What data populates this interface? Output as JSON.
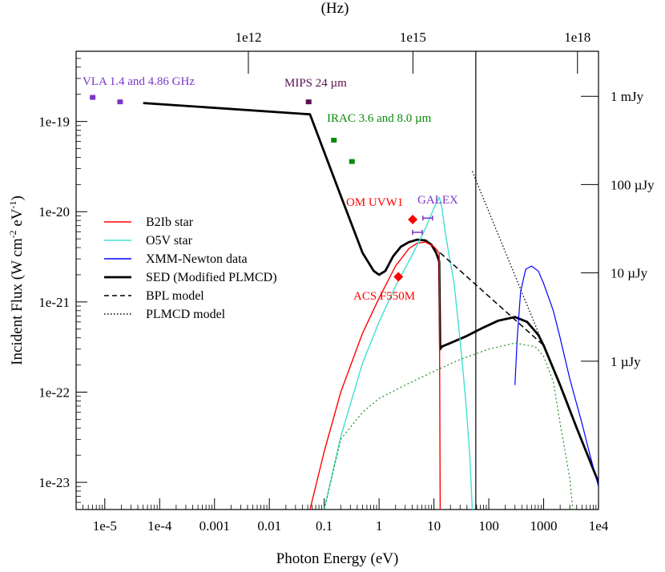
{
  "chart_data": {
    "type": "line",
    "xlabel": "Photon Energy (eV)",
    "ylabel_parts": [
      "Incident Flux  (W cm",
      "-2",
      " eV",
      "-1",
      ")"
    ],
    "top_axis_label": "(Hz)",
    "x_scale": "log",
    "y_scale": "log",
    "xlim": [
      3e-06,
      10000
    ],
    "ylim": [
      5e-24,
      6e-19
    ],
    "x_ticks": [
      {
        "value": 1e-05,
        "label": "1e-5"
      },
      {
        "value": 0.0001,
        "label": "1e-4"
      },
      {
        "value": 0.001,
        "label": "0.001"
      },
      {
        "value": 0.01,
        "label": "0.01"
      },
      {
        "value": 0.1,
        "label": "0.1"
      },
      {
        "value": 1,
        "label": "1"
      },
      {
        "value": 10,
        "label": "10"
      },
      {
        "value": 100,
        "label": "100"
      },
      {
        "value": 1000,
        "label": "1000"
      },
      {
        "value": 10000,
        "label": "1e4"
      }
    ],
    "y_ticks": [
      {
        "value": 1e-19,
        "label": "1e-19"
      },
      {
        "value": 1e-20,
        "label": "1e-20"
      },
      {
        "value": 1e-21,
        "label": "1e-21"
      },
      {
        "value": 1e-22,
        "label": "1e-22"
      },
      {
        "value": 1e-23,
        "label": "1e-23"
      }
    ],
    "top_ticks": [
      {
        "value": 0.00414,
        "label": "1e12"
      },
      {
        "value": 4.14,
        "label": "1e15"
      },
      {
        "value": 4140,
        "label": "1e18"
      }
    ],
    "right_ticks": [
      {
        "value": 1.9e-19,
        "label": "1 mJy"
      },
      {
        "value": 2e-20,
        "label": "100 µJy"
      },
      {
        "value": 2.1e-21,
        "label": "10 µJy"
      },
      {
        "value": 2.2e-22,
        "label": "1 µJy"
      }
    ],
    "vertical_line_x": 58,
    "legend": [
      {
        "label": "B2Ib star",
        "color": "#ff0000",
        "dash": "solid"
      },
      {
        "label": "O5V star",
        "color": "#40e0d0",
        "dash": "solid"
      },
      {
        "label": "XMM-Newton data",
        "color": "#0000ff",
        "dash": "solid"
      },
      {
        "label": "SED (Modified PLMCD)",
        "color": "#000000",
        "dash": "thick"
      },
      {
        "label": "BPL model",
        "color": "#000000",
        "dash": "dashed"
      },
      {
        "label": "PLMCD model",
        "color": "#000000",
        "dash": "dotted"
      }
    ],
    "series": [
      {
        "name": "SED (Modified PLMCD)",
        "color": "#000000",
        "width": 2.8,
        "dash": "",
        "points": [
          [
            5e-05,
            1.6e-19
          ],
          [
            0.055,
            1.2e-19
          ],
          [
            0.2,
            1.5e-20
          ],
          [
            0.5,
            3.5e-21
          ],
          [
            0.8,
            2.2e-21
          ],
          [
            1.0,
            2e-21
          ],
          [
            1.3,
            2.2e-21
          ],
          [
            1.8,
            3.2e-21
          ],
          [
            2.5,
            4.1e-21
          ],
          [
            3.5,
            4.6e-21
          ],
          [
            5,
            4.9e-21
          ],
          [
            7,
            4.8e-21
          ],
          [
            9,
            4.3e-21
          ],
          [
            11,
            3.5e-21
          ],
          [
            12.5,
            2.8e-21
          ],
          [
            13,
            3e-22
          ],
          [
            14,
            3.2e-22
          ],
          [
            20,
            3.5e-22
          ],
          [
            40,
            4.2e-22
          ],
          [
            80,
            5.2e-22
          ],
          [
            150,
            6.2e-22
          ],
          [
            300,
            6.8e-22
          ],
          [
            500,
            6e-22
          ],
          [
            800,
            4.3e-22
          ],
          [
            1000,
            3.3e-22
          ],
          [
            2000,
            1.2e-22
          ],
          [
            4000,
            4e-23
          ],
          [
            10000,
            1e-23
          ]
        ]
      },
      {
        "name": "B2Ib star",
        "color": "#ff0000",
        "width": 1.4,
        "dash": "",
        "points": [
          [
            0.055,
            5e-24
          ],
          [
            0.1,
            2.2e-23
          ],
          [
            0.2,
            1e-22
          ],
          [
            0.5,
            4.5e-22
          ],
          [
            1,
            1.1e-21
          ],
          [
            2,
            2.5e-21
          ],
          [
            3.5,
            3.9e-21
          ],
          [
            5,
            4.5e-21
          ],
          [
            7,
            4.6e-21
          ],
          [
            10,
            4.1e-21
          ],
          [
            12.5,
            3.5e-21
          ],
          [
            13,
            5e-24
          ]
        ]
      },
      {
        "name": "O5V star",
        "color": "#40e0d0",
        "width": 1.4,
        "dash": "",
        "points": [
          [
            0.1,
            5e-24
          ],
          [
            0.2,
            3.2e-23
          ],
          [
            0.5,
            2.1e-22
          ],
          [
            1,
            6e-22
          ],
          [
            2,
            1.5e-21
          ],
          [
            4,
            3.3e-21
          ],
          [
            7,
            6.5e-21
          ],
          [
            10,
            1.1e-20
          ],
          [
            12.5,
            1.45e-20
          ],
          [
            14,
            1.1e-20
          ],
          [
            16,
            6e-21
          ],
          [
            19,
            3.2e-21
          ],
          [
            23,
            1.7e-21
          ],
          [
            27,
            7e-22
          ],
          [
            32,
            2.5e-22
          ],
          [
            38,
            8e-23
          ],
          [
            45,
            2e-23
          ],
          [
            50,
            5e-24
          ]
        ]
      },
      {
        "name": "XMM-Newton data",
        "color": "#0000ff",
        "width": 1.2,
        "dash": "",
        "points": [
          [
            300,
            1.2e-22
          ],
          [
            330,
            4e-22
          ],
          [
            380,
            1.3e-21
          ],
          [
            470,
            2.3e-21
          ],
          [
            600,
            2.5e-21
          ],
          [
            800,
            2.2e-21
          ],
          [
            1000,
            1.6e-21
          ],
          [
            1500,
            8e-22
          ],
          [
            2000,
            4e-22
          ],
          [
            3000,
            1.4e-22
          ],
          [
            5000,
            4.5e-23
          ],
          [
            7000,
            2e-23
          ],
          [
            10000,
            9e-24
          ]
        ]
      },
      {
        "name": "PLMCD disk",
        "color": "#228b22",
        "width": 1.2,
        "dash": "2,3",
        "points": [
          [
            0.1,
            5e-24
          ],
          [
            0.2,
            3e-23
          ],
          [
            0.5,
            6e-23
          ],
          [
            1,
            8.5e-23
          ],
          [
            3,
            1.2e-22
          ],
          [
            10,
            1.7e-22
          ],
          [
            30,
            2.3e-22
          ],
          [
            100,
            3e-22
          ],
          [
            300,
            3.5e-22
          ],
          [
            700,
            3.2e-22
          ],
          [
            1000,
            2.5e-22
          ],
          [
            1500,
            1.3e-22
          ],
          [
            2000,
            4.5e-23
          ],
          [
            3000,
            1.1e-23
          ],
          [
            3400,
            5e-24
          ]
        ]
      },
      {
        "name": "BPL model",
        "color": "#000000",
        "width": 1.5,
        "dash": "7,4",
        "points": [
          [
            13,
            3.5e-21
          ],
          [
            1000,
            3.3e-22
          ],
          [
            10000,
            1e-23
          ]
        ]
      },
      {
        "name": "PLMCD model",
        "color": "#000000",
        "width": 1.3,
        "dash": "1.5,2.5",
        "points": [
          [
            50,
            2.8e-20
          ],
          [
            1000,
            3.3e-22
          ],
          [
            10000,
            1e-23
          ]
        ]
      }
    ],
    "markers": [
      {
        "name": "VLA",
        "x": 6e-06,
        "y": 1.85e-19,
        "shape": "square",
        "color": "#7b35c9"
      },
      {
        "name": "VLA",
        "x": 1.9e-05,
        "y": 1.65e-19,
        "shape": "square",
        "color": "#7b35c9"
      },
      {
        "name": "MIPS",
        "x": 0.052,
        "y": 1.65e-19,
        "shape": "square",
        "color": "#5a1050"
      },
      {
        "name": "IRAC",
        "x": 0.15,
        "y": 6.2e-20,
        "shape": "square",
        "color": "#0a8a0a"
      },
      {
        "name": "IRAC",
        "x": 0.32,
        "y": 3.6e-20,
        "shape": "square",
        "color": "#0a8a0a"
      },
      {
        "name": "OM UVW1",
        "x": 4.1,
        "y": 8.2e-21,
        "shape": "diamond",
        "color": "#ff0000"
      },
      {
        "name": "ACS F550M",
        "x": 2.25,
        "y": 1.9e-21,
        "shape": "diamond",
        "color": "#ff0000"
      },
      {
        "name": "GALEX",
        "x": 5.0,
        "y": 5.9e-21,
        "shape": "errorbar",
        "color": "#7b35c9"
      },
      {
        "name": "GALEX",
        "x": 7.7,
        "y": 8.5e-21,
        "shape": "errorbar",
        "color": "#7b35c9"
      }
    ],
    "annotations": [
      {
        "text": "VLA 1.4 and 4.86 GHz",
        "color": "#7b35c9"
      },
      {
        "text": "MIPS 24 µm",
        "color": "#5a1050"
      },
      {
        "text": "IRAC 3.6 and  8.0 µm",
        "color": "#0a8a0a"
      },
      {
        "text": "OM UVW1",
        "color": "#ff0000"
      },
      {
        "text": "GALEX",
        "color": "#7b35c9"
      },
      {
        "text": "ACS F550M",
        "color": "#ff0000"
      }
    ]
  }
}
